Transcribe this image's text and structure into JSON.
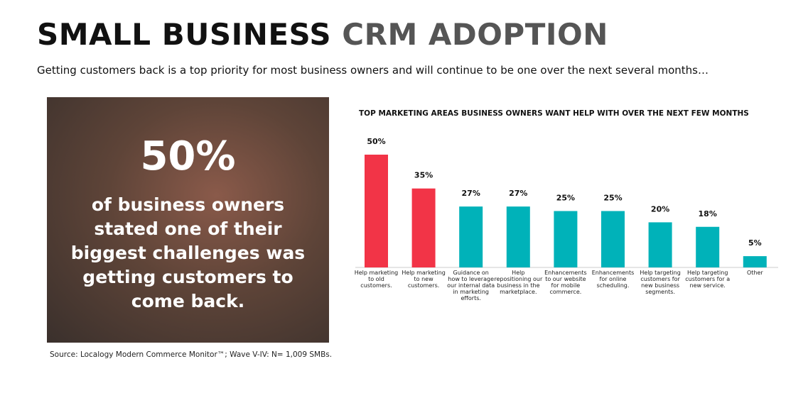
{
  "header": {
    "title_dark": "SMALL BUSINESS",
    "title_light": "CRM ADOPTION",
    "subtitle": "Getting customers back is a top priority for most business owners and will continue to be one over the next several months…"
  },
  "callout": {
    "stat": "50%",
    "text": "of business owners stated one of their biggest challenges was getting customers to come back."
  },
  "source": "Source: Localogy Modern Commerce Monitor™; Wave V-IV: N= 1,009 SMBs.",
  "chart_data": {
    "type": "bar",
    "title": "TOP MARKETING AREAS BUSINESS OWNERS WANT HELP WITH OVER THE NEXT FEW MONTHS",
    "categories": [
      "Help marketing to old customers.",
      "Help marketing to new customers.",
      "Guidance on how to leverage our internal data in marketing efforts.",
      "Help repositioning our business in the marketplace.",
      "Enhancements to our website for mobile commerce.",
      "Enhancements for online scheduling.",
      "Help targeting customers for new business segments.",
      "Help targeting customers for a new service.",
      "Other"
    ],
    "values": [
      50,
      35,
      27,
      27,
      25,
      25,
      20,
      18,
      5
    ],
    "value_labels": [
      "50%",
      "35%",
      "27%",
      "27%",
      "25%",
      "25%",
      "20%",
      "18%",
      "5%"
    ],
    "colors": [
      "#f23447",
      "#f23447",
      "#00b2b9",
      "#00b2b9",
      "#00b2b9",
      "#00b2b9",
      "#00b2b9",
      "#00b2b9",
      "#00b2b9"
    ]
  }
}
